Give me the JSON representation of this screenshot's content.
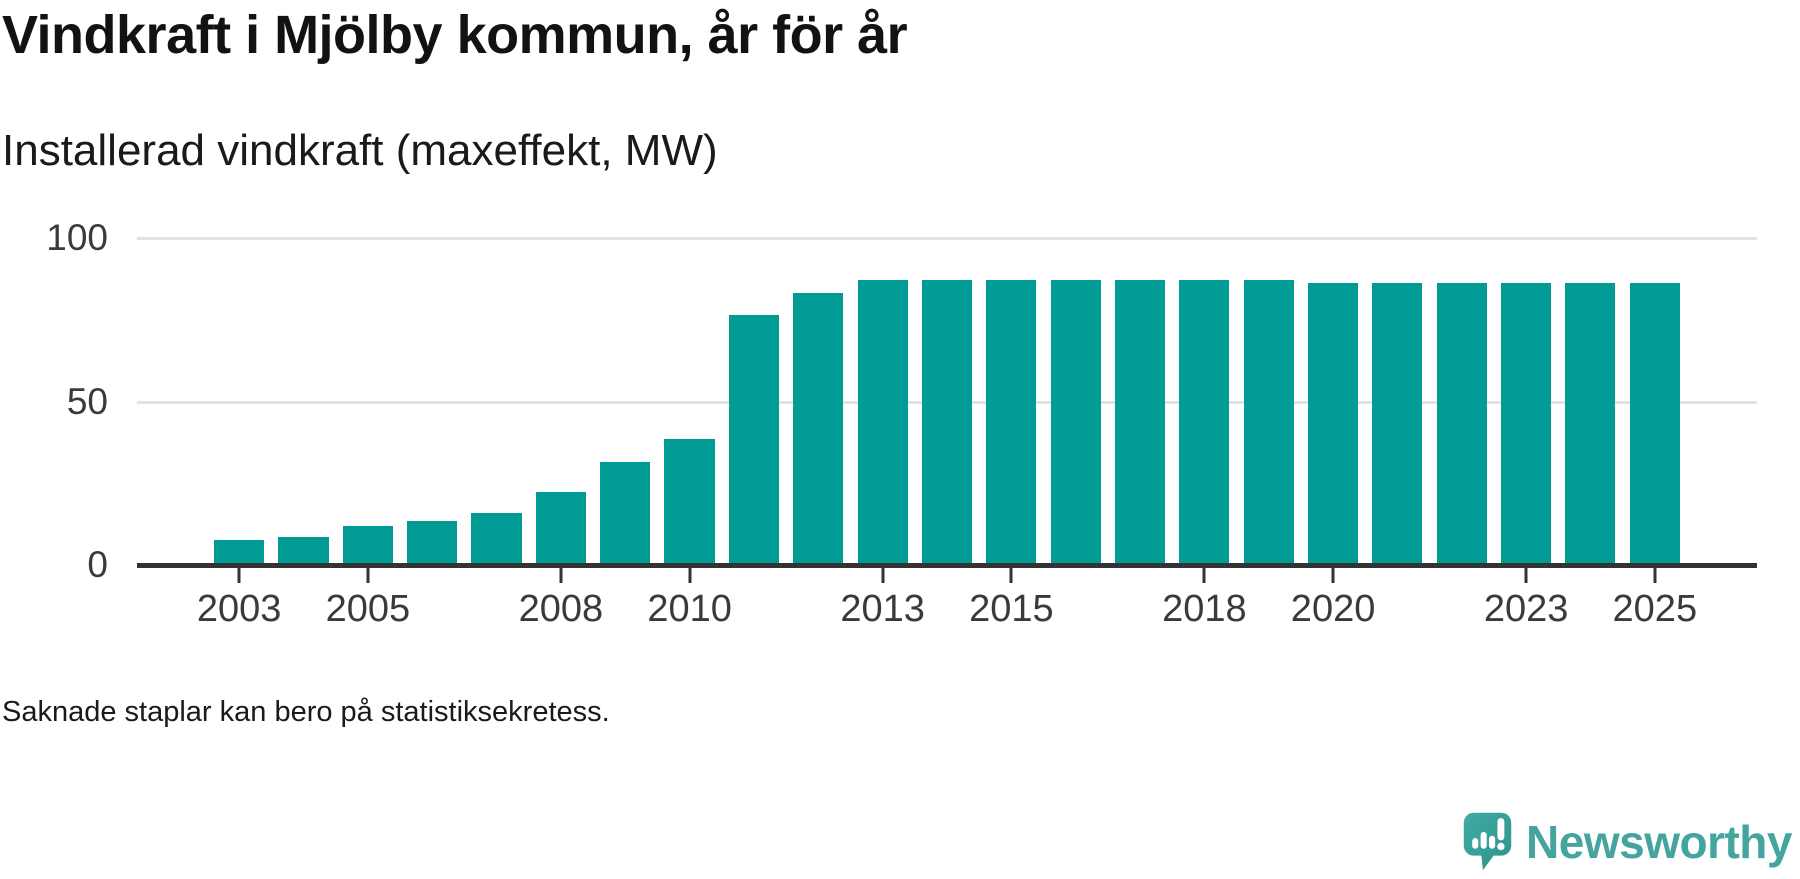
{
  "header": {
    "title": "Vindkraft i Mjölby kommun, år för år"
  },
  "chart": {
    "subtitle": "Installerad vindkraft (maxeffekt, MW)",
    "footnote": "Saknade staplar kan bero på statistiksekretess.",
    "colors": {
      "bar": "#009B94",
      "axis_line": "#333333",
      "gridline": "#e2e2e2",
      "tick_label": "#3a3a3a",
      "logo_teal": "#44A49E"
    }
  },
  "chart_data": {
    "type": "bar",
    "title": "Vindkraft i Mjölby kommun, år för år",
    "subtitle": "Installerad vindkraft (maxeffekt, MW)",
    "categories": [
      2003,
      2004,
      2005,
      2006,
      2007,
      2008,
      2009,
      2010,
      2011,
      2012,
      2013,
      2014,
      2015,
      2016,
      2017,
      2018,
      2019,
      2020,
      2021,
      2022,
      2023,
      2024,
      2025
    ],
    "values": [
      7.5,
      8.6,
      11.9,
      13.5,
      16.0,
      22.4,
      31.6,
      38.4,
      76.5,
      83.3,
      87.2,
      87.2,
      87.2,
      87.2,
      87.2,
      87.2,
      87.2,
      86.2,
      86.2,
      86.2,
      86.2,
      86.2,
      86.2
    ],
    "x_tick_labels": [
      "2003",
      "2005",
      "2008",
      "2010",
      "2013",
      "2015",
      "2018",
      "2020",
      "2023",
      "2025"
    ],
    "y_ticks": [
      0,
      50,
      100
    ],
    "ylim": [
      0,
      100
    ],
    "xlabel": "",
    "ylabel": "",
    "grid": "horizontal",
    "legend": "none",
    "bar_color": "#009B94"
  },
  "branding": {
    "logo_text": "Newsworthy",
    "logo_icon": "speech-bubble-bar-chart-exclamation"
  }
}
